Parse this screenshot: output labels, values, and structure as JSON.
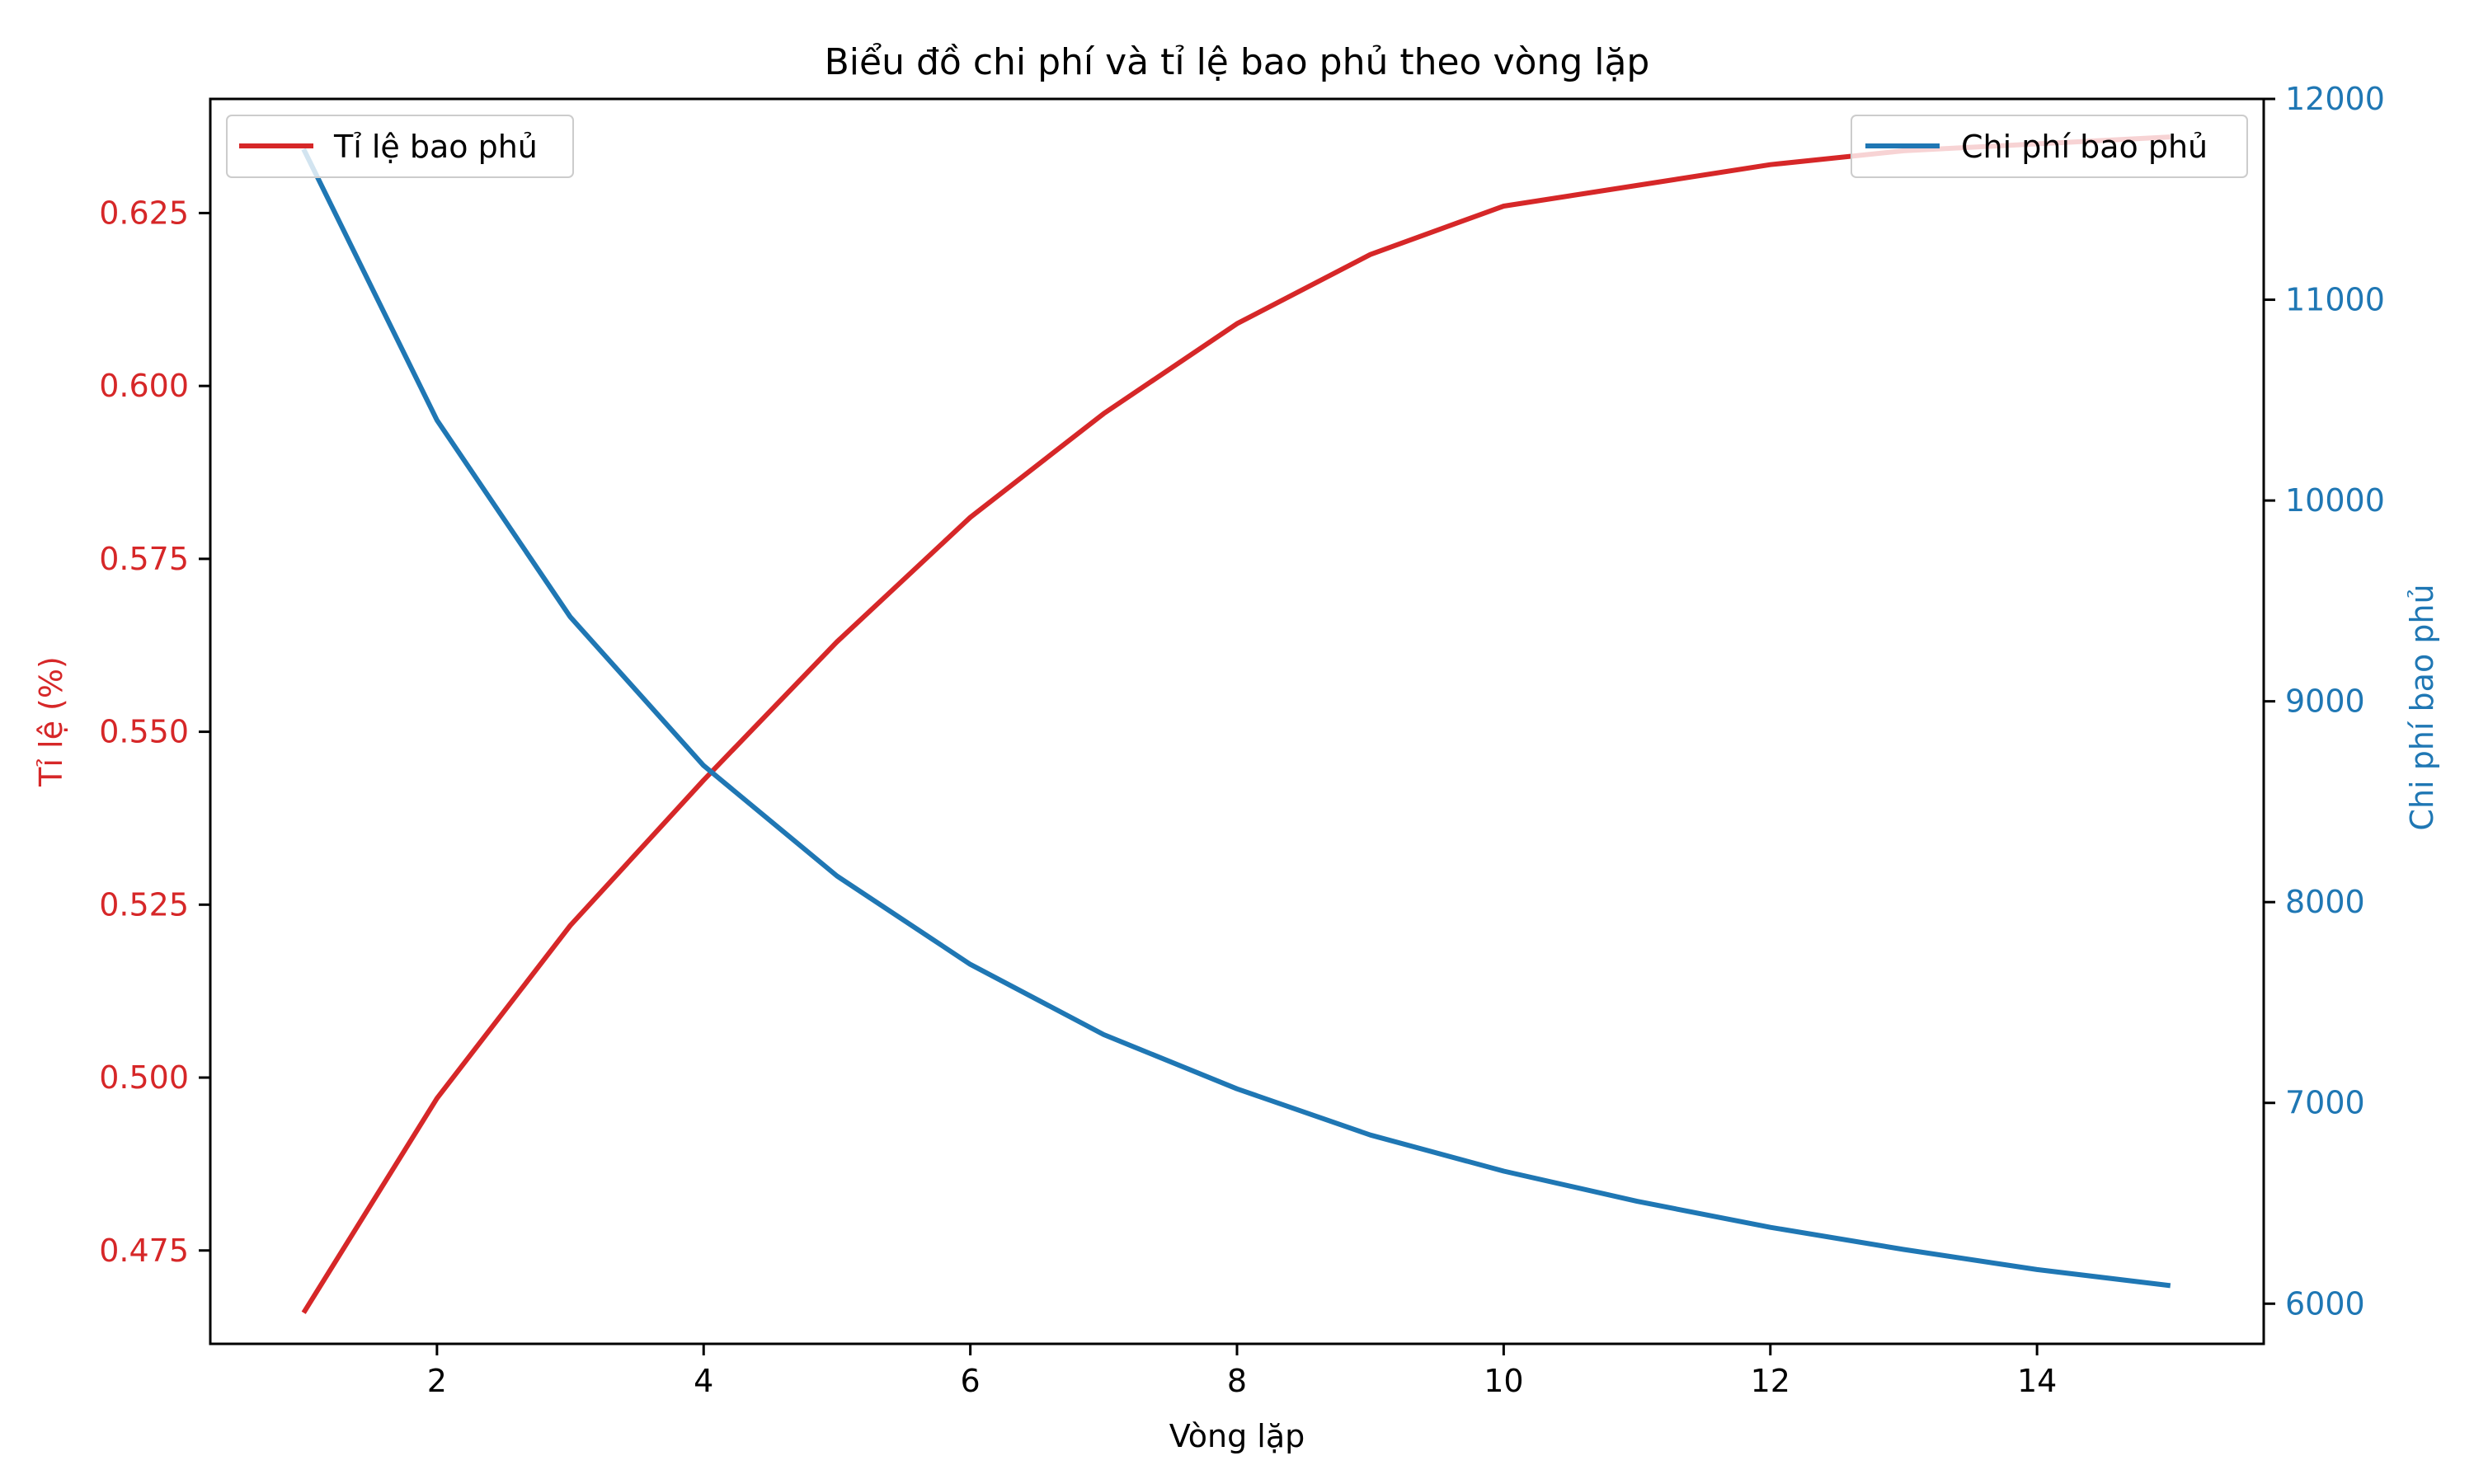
{
  "chart_data": {
    "type": "line",
    "title": "Biểu đồ chi phí và tỉ lệ bao phủ theo vòng lặp",
    "xlabel": "Vòng lặp",
    "ylabel_left": "Tỉ lệ (%)",
    "ylabel_right": "Chi phí bao phủ",
    "x": [
      1,
      2,
      3,
      4,
      5,
      6,
      7,
      8,
      9,
      10,
      11,
      12,
      13,
      14,
      15
    ],
    "xlim": [
      0.3,
      15.7
    ],
    "xticks": [
      2,
      4,
      6,
      8,
      10,
      12,
      14
    ],
    "ylim_left": [
      0.4615,
      0.6415
    ],
    "yticks_left": [
      0.475,
      0.5,
      0.525,
      0.55,
      0.575,
      0.6,
      0.625
    ],
    "ytick_labels_left": [
      "0.475",
      "0.500",
      "0.525",
      "0.550",
      "0.575",
      "0.600",
      "0.625"
    ],
    "ylim_right": [
      5800,
      12000
    ],
    "yticks_right": [
      6000,
      7000,
      8000,
      9000,
      10000,
      11000,
      12000
    ],
    "ytick_labels_right": [
      "6000",
      "7000",
      "8000",
      "9000",
      "10000",
      "11000",
      "12000"
    ],
    "grid": false,
    "series": [
      {
        "name": "Tỉ lệ bao phủ",
        "axis": "left",
        "color": "#d62728",
        "legend_position": "upper left",
        "values": [
          0.466,
          0.497,
          0.522,
          0.543,
          0.563,
          0.581,
          0.596,
          0.609,
          0.619,
          0.626,
          0.629,
          0.632,
          0.634,
          0.635,
          0.636
        ]
      },
      {
        "name": "Chi phí bao phủ",
        "axis": "right",
        "color": "#1f77b4",
        "legend_position": "upper right",
        "values": [
          11750,
          10400,
          9420,
          8680,
          8130,
          7690,
          7340,
          7070,
          6840,
          6660,
          6510,
          6380,
          6270,
          6170,
          6090
        ]
      }
    ]
  }
}
